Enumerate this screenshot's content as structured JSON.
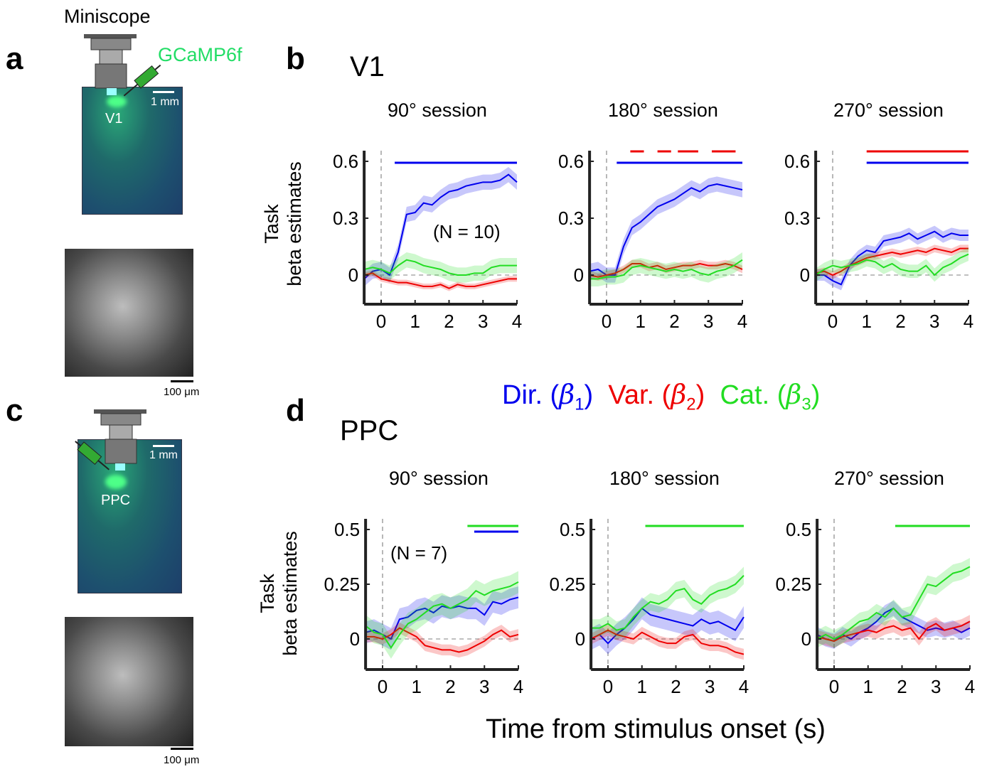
{
  "panel_letters": {
    "a": "a",
    "b": "b",
    "c": "c",
    "d": "d"
  },
  "panel_a": {
    "device_label": "Miniscope",
    "virus_label": "GCaMP6f",
    "region_label": "V1",
    "scale_brain": "1 mm",
    "scale_image": "100 μm"
  },
  "panel_c": {
    "region_label": "PPC",
    "scale_brain": "1 mm",
    "scale_image": "100 μm"
  },
  "rows": {
    "top_title": "V1",
    "bottom_title": "PPC"
  },
  "ylabel_line1": "Task",
  "ylabel_line2": "beta estimates",
  "xlabel": "Time from stimulus onset (s)",
  "legend": [
    {
      "label": "Dir.",
      "symbol": "β",
      "sub": "1",
      "color": "#0000ee"
    },
    {
      "label": "Var.",
      "symbol": "β",
      "sub": "2",
      "color": "#ee0000"
    },
    {
      "label": "Cat.",
      "symbol": "β",
      "sub": "3",
      "color": "#22dd22"
    }
  ],
  "colors": {
    "blue": "#0000ee",
    "red": "#ee0000",
    "green": "#22dd22"
  },
  "chart_data": [
    {
      "type": "line",
      "row": "V1",
      "title": "90° session",
      "annotation": "(N = 10)",
      "x_ticks": [
        "0",
        "1",
        "2",
        "3",
        "4"
      ],
      "y_ticks": [
        "0",
        "0.3",
        "0.6"
      ],
      "xlim": [
        -0.5,
        4
      ],
      "ylim": [
        -0.15,
        0.65
      ],
      "x": [
        -0.5,
        -0.25,
        0,
        0.25,
        0.5,
        0.75,
        1,
        1.25,
        1.5,
        1.75,
        2,
        2.25,
        2.5,
        2.75,
        3,
        3.25,
        3.5,
        3.75,
        4
      ],
      "series": [
        {
          "color": "blue",
          "sem": 0.04,
          "values": [
            -0.02,
            0.02,
            0.03,
            0.0,
            0.12,
            0.32,
            0.33,
            0.38,
            0.37,
            0.41,
            0.44,
            0.45,
            0.47,
            0.48,
            0.49,
            0.49,
            0.5,
            0.53,
            0.49
          ]
        },
        {
          "color": "red",
          "sem": 0.015,
          "values": [
            0.0,
            0.01,
            -0.02,
            -0.03,
            -0.04,
            -0.04,
            -0.05,
            -0.06,
            -0.06,
            -0.05,
            -0.07,
            -0.05,
            -0.06,
            -0.06,
            -0.05,
            -0.04,
            -0.03,
            -0.02,
            -0.02
          ]
        },
        {
          "color": "green",
          "sem": 0.04,
          "values": [
            0.03,
            0.04,
            0.03,
            0.01,
            0.05,
            0.08,
            0.07,
            0.05,
            0.04,
            0.03,
            0.01,
            0.0,
            0.0,
            0.01,
            0.01,
            0.04,
            0.05,
            0.05,
            0.05
          ]
        }
      ],
      "significance": [
        {
          "color": "blue",
          "intervals": [
            [
              0.4,
              4
            ]
          ]
        }
      ]
    },
    {
      "type": "line",
      "row": "V1",
      "title": "180° session",
      "x_ticks": [
        "0",
        "1",
        "2",
        "3",
        "4"
      ],
      "y_ticks": [
        "0",
        "0.3",
        "0.6"
      ],
      "xlim": [
        -0.5,
        4
      ],
      "ylim": [
        -0.15,
        0.65
      ],
      "x": [
        -0.5,
        -0.25,
        0,
        0.25,
        0.5,
        0.75,
        1,
        1.25,
        1.5,
        1.75,
        2,
        2.25,
        2.5,
        2.75,
        3,
        3.25,
        3.5,
        3.75,
        4
      ],
      "series": [
        {
          "color": "blue",
          "sem": 0.04,
          "values": [
            0.02,
            0.03,
            0.0,
            0.0,
            0.15,
            0.25,
            0.28,
            0.32,
            0.36,
            0.38,
            0.4,
            0.43,
            0.46,
            0.44,
            0.47,
            0.48,
            0.47,
            0.46,
            0.45
          ]
        },
        {
          "color": "red",
          "sem": 0.02,
          "values": [
            0.0,
            -0.01,
            0.0,
            0.01,
            0.03,
            0.06,
            0.06,
            0.04,
            0.05,
            0.03,
            0.04,
            0.05,
            0.05,
            0.06,
            0.05,
            0.05,
            0.06,
            0.05,
            0.03
          ]
        },
        {
          "color": "green",
          "sem": 0.04,
          "values": [
            -0.02,
            -0.02,
            -0.01,
            -0.01,
            0.0,
            0.04,
            0.05,
            0.04,
            0.03,
            0.02,
            0.03,
            0.02,
            0.03,
            0.01,
            0.0,
            0.02,
            0.03,
            0.05,
            0.08
          ]
        }
      ],
      "significance": [
        {
          "color": "blue",
          "intervals": [
            [
              0.3,
              4
            ]
          ]
        },
        {
          "color": "red",
          "intervals": [
            [
              0.7,
              1.1
            ],
            [
              1.5,
              1.9
            ],
            [
              2.1,
              2.7
            ],
            [
              3.1,
              3.8
            ]
          ]
        }
      ]
    },
    {
      "type": "line",
      "row": "V1",
      "title": "270° session",
      "x_ticks": [
        "0",
        "1",
        "2",
        "3",
        "4"
      ],
      "y_ticks": [
        "0",
        "0.3",
        "0.6"
      ],
      "xlim": [
        -0.5,
        4
      ],
      "ylim": [
        -0.15,
        0.65
      ],
      "x": [
        -0.5,
        -0.25,
        0,
        0.25,
        0.5,
        0.75,
        1,
        1.25,
        1.5,
        1.75,
        2,
        2.25,
        2.5,
        2.75,
        3,
        3.25,
        3.5,
        3.75,
        4
      ],
      "series": [
        {
          "color": "blue",
          "sem": 0.03,
          "values": [
            0.0,
            0.0,
            -0.03,
            -0.05,
            0.05,
            0.1,
            0.13,
            0.12,
            0.18,
            0.19,
            0.2,
            0.22,
            0.19,
            0.21,
            0.23,
            0.2,
            0.22,
            0.21,
            0.21
          ]
        },
        {
          "color": "red",
          "sem": 0.02,
          "values": [
            0.01,
            0.02,
            0.0,
            0.02,
            0.05,
            0.07,
            0.09,
            0.1,
            0.11,
            0.12,
            0.11,
            0.12,
            0.13,
            0.12,
            0.14,
            0.13,
            0.12,
            0.14,
            0.14
          ]
        },
        {
          "color": "green",
          "sem": 0.035,
          "values": [
            0.0,
            0.03,
            0.05,
            0.04,
            0.05,
            0.06,
            0.08,
            0.07,
            0.04,
            0.06,
            0.03,
            0.02,
            0.02,
            0.05,
            0.0,
            0.04,
            0.06,
            0.09,
            0.11
          ]
        }
      ],
      "significance": [
        {
          "color": "blue",
          "intervals": [
            [
              1,
              4
            ]
          ]
        },
        {
          "color": "red",
          "intervals": [
            [
              1,
              4
            ]
          ]
        }
      ]
    },
    {
      "type": "line",
      "row": "PPC",
      "title": "90° session",
      "annotation": "(N = 7)",
      "x_ticks": [
        "0",
        "1",
        "2",
        "3",
        "4"
      ],
      "y_ticks": [
        "0",
        "0.25",
        "0.5"
      ],
      "xlim": [
        -0.5,
        4
      ],
      "ylim": [
        -0.14,
        0.55
      ],
      "x": [
        -0.5,
        -0.25,
        0,
        0.25,
        0.5,
        0.75,
        1,
        1.25,
        1.5,
        1.75,
        2,
        2.25,
        2.5,
        2.75,
        3,
        3.25,
        3.5,
        3.75,
        4
      ],
      "series": [
        {
          "color": "blue",
          "sem": 0.05,
          "values": [
            0.03,
            0.04,
            0.02,
            0.0,
            0.09,
            0.1,
            0.13,
            0.14,
            0.12,
            0.15,
            0.14,
            0.15,
            0.14,
            0.14,
            0.11,
            0.17,
            0.16,
            0.18,
            0.19
          ]
        },
        {
          "color": "red",
          "sem": 0.025,
          "values": [
            0.01,
            0.01,
            0.0,
            0.02,
            0.05,
            0.03,
            0.01,
            -0.03,
            -0.04,
            -0.05,
            -0.05,
            -0.06,
            -0.05,
            -0.03,
            -0.01,
            0.02,
            0.04,
            0.01,
            0.02
          ]
        },
        {
          "color": "green",
          "sem": 0.05,
          "values": [
            0.06,
            0.03,
            0.02,
            -0.04,
            0.02,
            0.07,
            0.09,
            0.12,
            0.15,
            0.16,
            0.14,
            0.16,
            0.18,
            0.22,
            0.2,
            0.22,
            0.23,
            0.24,
            0.26
          ]
        }
      ],
      "significance": [
        {
          "color": "green",
          "intervals": [
            [
              2.5,
              4
            ]
          ]
        },
        {
          "color": "blue",
          "intervals": [
            [
              2.7,
              4
            ]
          ]
        }
      ]
    },
    {
      "type": "line",
      "row": "PPC",
      "title": "180° session",
      "x_ticks": [
        "0",
        "1",
        "2",
        "3",
        "4"
      ],
      "y_ticks": [
        "0",
        "0.25",
        "0.5"
      ],
      "xlim": [
        -0.5,
        4
      ],
      "ylim": [
        -0.14,
        0.55
      ],
      "x": [
        -0.5,
        -0.25,
        0,
        0.25,
        0.5,
        0.75,
        1,
        1.25,
        1.5,
        1.75,
        2,
        2.25,
        2.5,
        2.75,
        3,
        3.25,
        3.5,
        3.75,
        4
      ],
      "series": [
        {
          "color": "blue",
          "sem": 0.05,
          "values": [
            0.0,
            0.02,
            -0.02,
            0.02,
            0.05,
            0.09,
            0.14,
            0.11,
            0.1,
            0.09,
            0.08,
            0.07,
            0.06,
            0.09,
            0.07,
            0.08,
            0.06,
            0.04,
            0.1
          ]
        },
        {
          "color": "red",
          "sem": 0.025,
          "values": [
            0.0,
            0.02,
            0.04,
            0.02,
            0.01,
            0.0,
            0.03,
            0.01,
            -0.01,
            -0.02,
            -0.02,
            0.01,
            0.02,
            -0.02,
            -0.03,
            -0.03,
            -0.04,
            -0.06,
            -0.07
          ]
        },
        {
          "color": "green",
          "sem": 0.04,
          "values": [
            0.05,
            0.05,
            0.07,
            0.04,
            0.05,
            0.1,
            0.14,
            0.17,
            0.16,
            0.18,
            0.22,
            0.23,
            0.18,
            0.16,
            0.2,
            0.22,
            0.23,
            0.25,
            0.29
          ]
        }
      ],
      "significance": [
        {
          "color": "green",
          "intervals": [
            [
              1.1,
              4
            ]
          ]
        }
      ]
    },
    {
      "type": "line",
      "row": "PPC",
      "title": "270° session",
      "x_ticks": [
        "0",
        "1",
        "2",
        "3",
        "4"
      ],
      "y_ticks": [
        "0",
        "0.25",
        "0.5"
      ],
      "xlim": [
        -0.5,
        4
      ],
      "ylim": [
        -0.14,
        0.55
      ],
      "x": [
        -0.5,
        -0.25,
        0,
        0.25,
        0.5,
        0.75,
        1,
        1.25,
        1.5,
        1.75,
        2,
        2.25,
        2.5,
        2.75,
        3,
        3.25,
        3.5,
        3.75,
        4
      ],
      "series": [
        {
          "color": "blue",
          "sem": 0.035,
          "values": [
            0.02,
            0.0,
            -0.01,
            0.02,
            0.0,
            0.03,
            0.05,
            0.08,
            0.12,
            0.14,
            0.1,
            0.08,
            0.06,
            0.04,
            0.05,
            0.04,
            0.05,
            0.03,
            0.05
          ]
        },
        {
          "color": "red",
          "sem": 0.03,
          "values": [
            0.01,
            0.0,
            -0.01,
            0.01,
            0.02,
            0.03,
            0.04,
            0.03,
            0.05,
            0.06,
            0.04,
            0.05,
            0.0,
            0.05,
            0.07,
            0.04,
            0.05,
            0.06,
            0.08
          ]
        },
        {
          "color": "green",
          "sem": 0.04,
          "values": [
            0.0,
            0.02,
            0.0,
            0.02,
            0.05,
            0.08,
            0.09,
            0.12,
            0.1,
            0.14,
            0.1,
            0.11,
            0.18,
            0.25,
            0.24,
            0.27,
            0.3,
            0.31,
            0.33
          ]
        }
      ],
      "significance": [
        {
          "color": "green",
          "intervals": [
            [
              1.8,
              4
            ]
          ]
        }
      ]
    }
  ]
}
